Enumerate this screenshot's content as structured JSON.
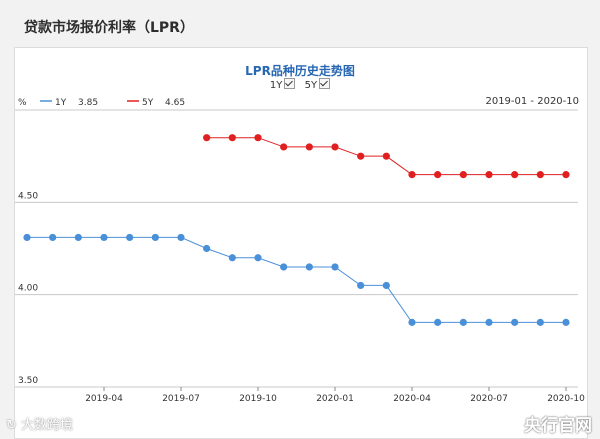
{
  "page_title": "贷款市场报价利率（LPR）",
  "toggles": [
    {
      "label": "1Y",
      "checked": true
    },
    {
      "label": "5Y",
      "checked": true
    }
  ],
  "watermarks": {
    "left": "大数跨境",
    "right": "央行官网"
  },
  "colors": {
    "series_1y": "#4a90d9",
    "series_5y": "#e02020",
    "grid": "#c8c8c8",
    "axis_text": "#333333"
  },
  "chart_data": {
    "type": "line",
    "title": "LPR品种历史走势图",
    "unit_label": "%",
    "date_range_label": "2019-01 - 2020-10",
    "legend": [
      {
        "name": "1Y",
        "value": "3.85"
      },
      {
        "name": "5Y",
        "value": "4.65"
      }
    ],
    "x_ticks": [
      "2019-04",
      "2019-07",
      "2019-10",
      "2020-01",
      "2020-04",
      "2020-07",
      "2020-10"
    ],
    "y_ticks": [
      "4.50",
      "4.00",
      "3.50"
    ],
    "ylim": [
      3.5,
      5.0
    ],
    "xlim": [
      "2019-01",
      "2020-10"
    ],
    "grid": "horizontal",
    "series": [
      {
        "name": "1Y",
        "x": [
          "2019-01",
          "2019-02",
          "2019-03",
          "2019-04",
          "2019-05",
          "2019-06",
          "2019-07",
          "2019-08",
          "2019-09",
          "2019-10",
          "2019-11",
          "2019-12",
          "2020-01",
          "2020-02",
          "2020-03",
          "2020-04",
          "2020-05",
          "2020-06",
          "2020-07",
          "2020-08",
          "2020-09",
          "2020-10"
        ],
        "values": [
          4.31,
          4.31,
          4.31,
          4.31,
          4.31,
          4.31,
          4.31,
          4.25,
          4.2,
          4.2,
          4.15,
          4.15,
          4.15,
          4.05,
          4.05,
          3.85,
          3.85,
          3.85,
          3.85,
          3.85,
          3.85,
          3.85
        ]
      },
      {
        "name": "5Y",
        "x": [
          "2019-08",
          "2019-09",
          "2019-10",
          "2019-11",
          "2019-12",
          "2020-01",
          "2020-02",
          "2020-03",
          "2020-04",
          "2020-05",
          "2020-06",
          "2020-07",
          "2020-08",
          "2020-09",
          "2020-10"
        ],
        "values": [
          4.85,
          4.85,
          4.85,
          4.8,
          4.8,
          4.8,
          4.75,
          4.75,
          4.65,
          4.65,
          4.65,
          4.65,
          4.65,
          4.65,
          4.65
        ]
      }
    ]
  }
}
